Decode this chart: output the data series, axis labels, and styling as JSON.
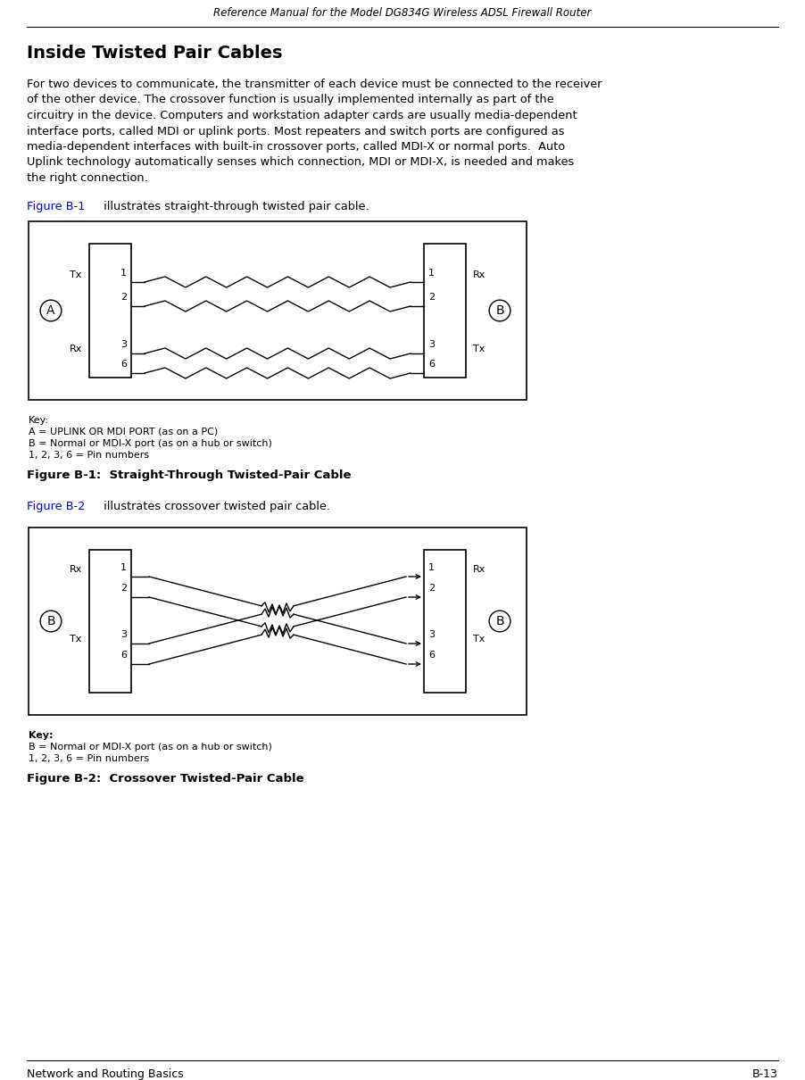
{
  "header_text": "Reference Manual for the Model DG834G Wireless ADSL Firewall Router",
  "footer_left": "Network and Routing Basics",
  "footer_right": "B-13",
  "title": "Inside Twisted Pair Cables",
  "body_lines": [
    "For two devices to communicate, the transmitter of each device must be connected to the receiver",
    "of the other device. The crossover function is usually implemented internally as part of the",
    "circuitry in the device. Computers and workstation adapter cards are usually media-dependent",
    "interface ports, called MDI or uplink ports. Most repeaters and switch ports are configured as",
    "media-dependent interfaces with built-in crossover ports, called MDI-X or normal ports.  Auto",
    "Uplink technology automatically senses which connection, MDI or MDI-X, is needed and makes",
    "the right connection."
  ],
  "fig1_ref": "Figure B-1",
  "fig1_ref_text": " illustrates straight-through twisted pair cable.",
  "fig1_caption": "Figure B-1:  Straight-Through Twisted-Pair Cable",
  "fig2_ref": "Figure B-2",
  "fig2_ref_text": " illustrates crossover twisted pair cable.",
  "fig2_caption": "Figure B-2:  Crossover Twisted-Pair Cable",
  "key1_lines": [
    "Key:",
    "A = UPLINK OR MDI PORT (as on a PC)",
    "B = Normal or MDI-X port (as on a hub or switch)",
    "1, 2, 3, 6 = Pin numbers"
  ],
  "key2_lines": [
    "Key:",
    "B = Normal or MDI-X port (as on a hub or switch)",
    "1, 2, 3, 6 = Pin numbers"
  ],
  "link_color": "#0000EE",
  "text_color": "#000000",
  "bg_color": "#FFFFFF"
}
